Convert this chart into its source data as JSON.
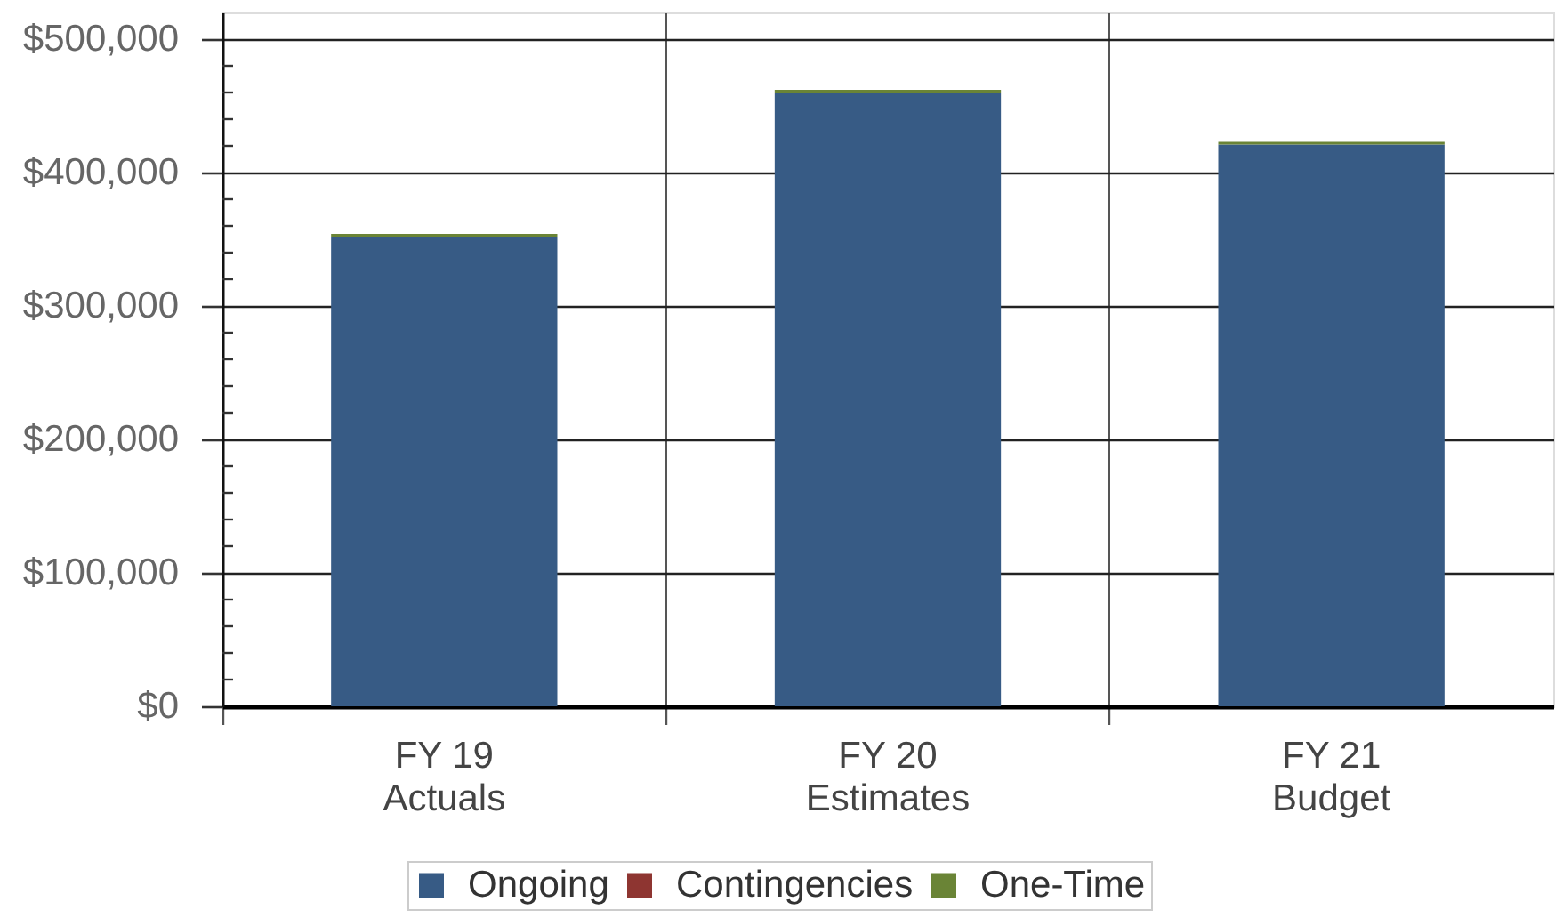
{
  "chart_data": {
    "type": "bar",
    "stacked": true,
    "categories": [
      "FY 19\nActuals",
      "FY 20\nEstimates",
      "FY 21\nBudget"
    ],
    "series": [
      {
        "name": "Ongoing",
        "color": "#375b85",
        "values": [
          352000,
          460000,
          421000
        ]
      },
      {
        "name": "Contingencies",
        "color": "#8e3531",
        "values": [
          null,
          null,
          null
        ]
      },
      {
        "name": "One-Time",
        "color": "#6a8436",
        "values": [
          2000,
          2000,
          2000
        ]
      }
    ],
    "ylim": [
      0,
      520000
    ],
    "yticks": [
      {
        "value": 0,
        "label": "$0"
      },
      {
        "value": 20000,
        "label": null
      },
      {
        "value": 40000,
        "label": null
      },
      {
        "value": 60000,
        "label": null
      },
      {
        "value": 80000,
        "label": null
      },
      {
        "value": 100000,
        "label": "$100,000"
      },
      {
        "value": 120000,
        "label": null
      },
      {
        "value": 140000,
        "label": null
      },
      {
        "value": 160000,
        "label": null
      },
      {
        "value": 180000,
        "label": null
      },
      {
        "value": 200000,
        "label": "$200,000"
      },
      {
        "value": 220000,
        "label": null
      },
      {
        "value": 240000,
        "label": null
      },
      {
        "value": 260000,
        "label": null
      },
      {
        "value": 280000,
        "label": null
      },
      {
        "value": 300000,
        "label": "$300,000"
      },
      {
        "value": 320000,
        "label": null
      },
      {
        "value": 340000,
        "label": null
      },
      {
        "value": 360000,
        "label": null
      },
      {
        "value": 380000,
        "label": null
      },
      {
        "value": 400000,
        "label": "$400,000"
      },
      {
        "value": 420000,
        "label": null
      },
      {
        "value": 440000,
        "label": null
      },
      {
        "value": 460000,
        "label": null
      },
      {
        "value": 480000,
        "label": null
      },
      {
        "value": 500000,
        "label": "$500,000"
      }
    ],
    "grid": true,
    "legend": "bottom"
  }
}
